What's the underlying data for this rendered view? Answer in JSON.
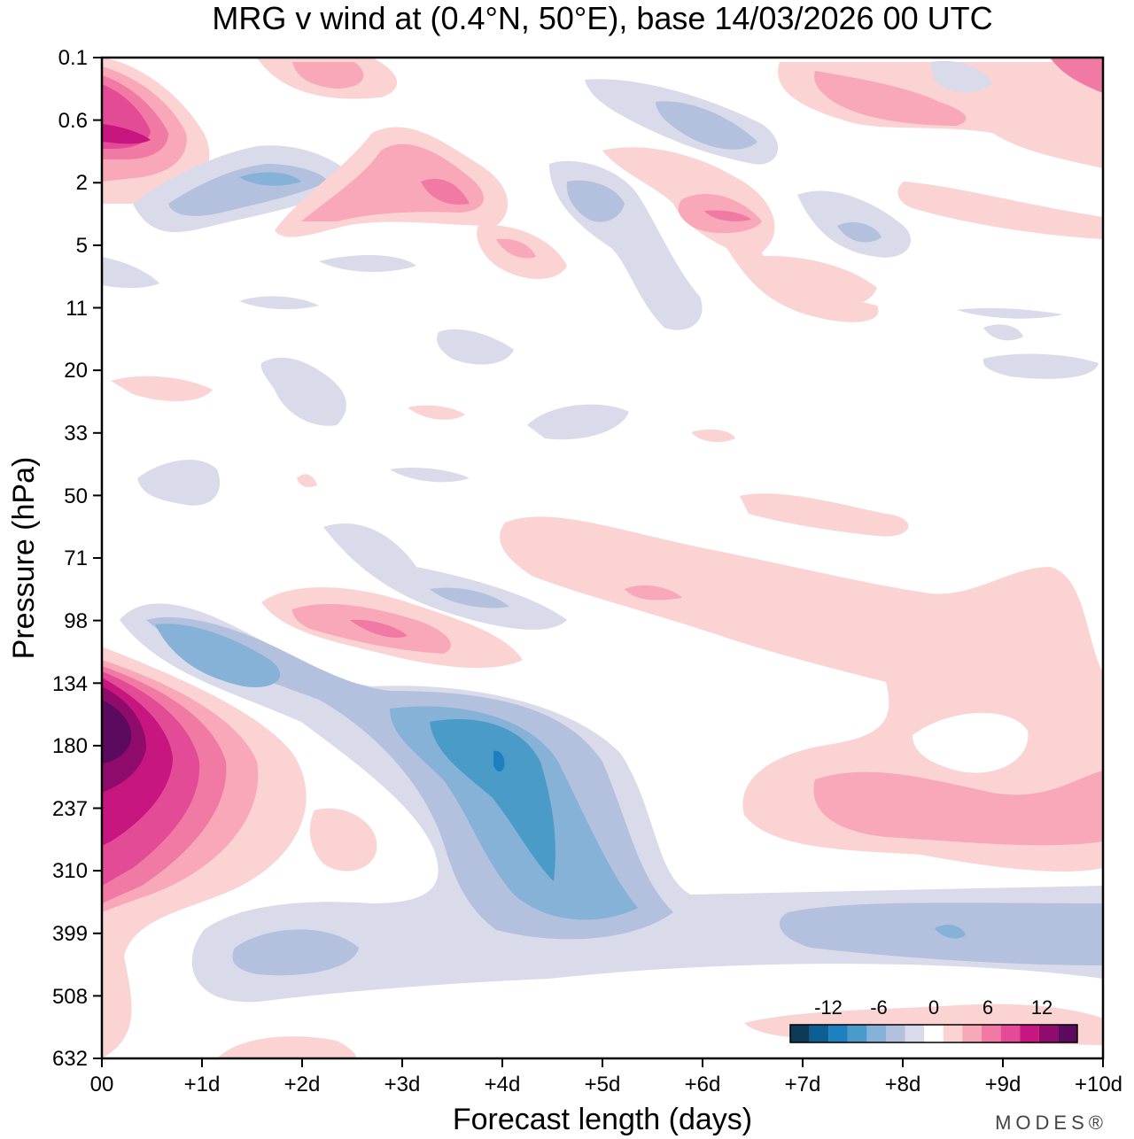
{
  "chart_data": {
    "type": "heatmap",
    "title": "MRG v wind at (0.4°N, 50°E),  base 14/03/2026  00 UTC",
    "xlabel": "Forecast length (days)",
    "ylabel": "Pressure (hPa)",
    "x_ticks": [
      "00",
      "+1d",
      "+2d",
      "+3d",
      "+4d",
      "+5d",
      "+6d",
      "+7d",
      "+8d",
      "+9d",
      "+10d"
    ],
    "y_ticks": [
      "0.1",
      "0.6",
      "2",
      "5",
      "11",
      "20",
      "33",
      "50",
      "71",
      "98",
      "134",
      "180",
      "237",
      "310",
      "399",
      "508",
      "632"
    ],
    "xlim_days": [
      0,
      10
    ],
    "y_levels": 16,
    "colorbar": {
      "tick_labels": [
        "-12",
        "-6",
        "0",
        "6",
        "12"
      ],
      "colors": [
        "#0c3a57",
        "#0d5f93",
        "#1d7fbd",
        "#4a9bc7",
        "#85b2d6",
        "#b3c1de",
        "#dadbea",
        "#ffffff",
        "#fbd3d3",
        "#f8a8b8",
        "#f07aa3",
        "#e44b97",
        "#c7167f",
        "#8f0c6c",
        "#5b0a5e"
      ]
    },
    "features": [
      {
        "label": "positive_max",
        "x_day": 0.1,
        "y_level": 10.7,
        "value": 15
      },
      {
        "label": "positive_upper_left",
        "x_day": 0.3,
        "y_level": 1.2,
        "value": 10
      },
      {
        "label": "negative_min",
        "x_day": 4.0,
        "y_level": 11.3,
        "value": -9
      },
      {
        "label": "negative_band_lower",
        "x_day": 8.5,
        "y_level": 14.0,
        "value": -5
      },
      {
        "label": "positive_right",
        "x_day": 9.2,
        "y_level": 12.5,
        "value": 5
      }
    ]
  },
  "brand": "MODES®"
}
